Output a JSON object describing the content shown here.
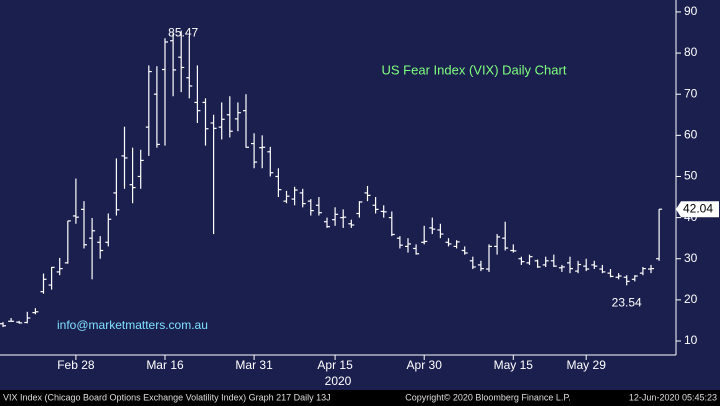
{
  "chart_data": {
    "type": "ohlc",
    "title": "US Fear Index (VIX) Daily Chart",
    "watermark": "info@marketmatters.com.au",
    "x_label": "2020",
    "footer": {
      "left": "VIX Index (Chicago Board Options Exchange Volatility Index) Graph 217  Daily 13J",
      "center": "Copyright© 2020 Bloomberg Finance L.P.",
      "right": "12-Jun-2020 05:45:23"
    },
    "categories": [
      null,
      null,
      null,
      null,
      null,
      null,
      null,
      null,
      null,
      "Feb 28",
      null,
      null,
      null,
      null,
      null,
      null,
      null,
      null,
      null,
      null,
      "Mar 16",
      null,
      null,
      null,
      null,
      null,
      null,
      null,
      null,
      null,
      null,
      "Mar 31",
      null,
      null,
      null,
      null,
      null,
      null,
      null,
      null,
      null,
      "Apr 15",
      null,
      null,
      null,
      null,
      null,
      null,
      null,
      null,
      null,
      null,
      "Apr 30",
      null,
      null,
      null,
      null,
      null,
      null,
      null,
      null,
      null,
      null,
      "May 15",
      null,
      null,
      null,
      null,
      null,
      null,
      null,
      null,
      "May 29",
      null,
      null,
      null,
      null,
      null,
      null,
      null,
      null,
      null
    ],
    "open": [
      14.2,
      14.8,
      14.6,
      14.5,
      16.9,
      22.0,
      23.6,
      26.8,
      29.0,
      40.4,
      42.0,
      35.0,
      34.0,
      34.0,
      46.0,
      55.0,
      48.0,
      50.0,
      62.0,
      70.0,
      76.0,
      83.0,
      79.0,
      74.0,
      68.0,
      68.0,
      63.0,
      62.0,
      65.0,
      64.0,
      66.0,
      58.0,
      57.0,
      56.0,
      50.0,
      44.0,
      44.5,
      46.0,
      44.0,
      43.0,
      39.0,
      39.5,
      40.0,
      38.5,
      41.0,
      46.0,
      43.0,
      41.5,
      40.0,
      35.0,
      33.0,
      32.5,
      34.0,
      37.5,
      37.0,
      34.0,
      33.0,
      32.0,
      29.5,
      28.5,
      27.5,
      33.0,
      35.0,
      32.0,
      30.0,
      29.0,
      29.5,
      28.5,
      29.5,
      27.8,
      29.0,
      27.0,
      28.2,
      28.5,
      27.5,
      26.5,
      25.5,
      25.5,
      25.0,
      26.5,
      27.5,
      30.0
    ],
    "high": [
      14.6,
      15.6,
      14.9,
      17.1,
      18.0,
      26.4,
      28.0,
      30.2,
      39.2,
      49.5,
      44.0,
      39.9,
      35.5,
      41.0,
      54.4,
      62.1,
      57.0,
      56.5,
      77.0,
      76.8,
      83.6,
      84.8,
      85.47,
      84.2,
      77.0,
      69.0,
      65.0,
      68.0,
      69.5,
      68.0,
      70.0,
      60.5,
      60.0,
      57.2,
      52.0,
      46.5,
      47.5,
      47.0,
      44.5,
      45.0,
      40.0,
      42.5,
      42.0,
      39.5,
      44.0,
      47.7,
      45.0,
      43.0,
      41.5,
      35.5,
      35.0,
      33.5,
      38.0,
      40.0,
      38.5,
      35.0,
      34.5,
      33.0,
      30.5,
      29.5,
      33.5,
      36.0,
      39.0,
      33.5,
      30.5,
      31.0,
      29.8,
      30.5,
      31.0,
      28.5,
      30.5,
      29.5,
      30.0,
      29.5,
      28.5,
      27.5,
      26.5,
      26.0,
      26.0,
      28.0,
      28.5,
      42.04
    ],
    "low": [
      13.4,
      14.7,
      14.2,
      14.3,
      16.5,
      21.5,
      22.5,
      26.0,
      28.8,
      38.5,
      32.5,
      25.0,
      30.0,
      33.0,
      40.5,
      47.0,
      43.5,
      47.0,
      55.0,
      57.0,
      57.5,
      69.5,
      70.5,
      69.0,
      63.0,
      57.5,
      36.0,
      59.0,
      59.5,
      61.0,
      57.0,
      52.0,
      52.0,
      50.0,
      45.0,
      43.5,
      43.0,
      42.5,
      40.5,
      40.5,
      37.5,
      38.0,
      37.5,
      37.5,
      40.0,
      44.0,
      41.0,
      40.0,
      35.5,
      32.5,
      31.5,
      31.0,
      33.5,
      36.0,
      35.0,
      33.0,
      32.5,
      31.0,
      27.5,
      27.0,
      26.8,
      31.0,
      32.0,
      31.5,
      28.5,
      28.5,
      27.8,
      28.0,
      28.0,
      26.8,
      26.5,
      26.5,
      27.0,
      27.5,
      26.5,
      25.5,
      25.0,
      23.54,
      24.5,
      26.0,
      26.5,
      29.5
    ],
    "close": [
      13.7,
      14.8,
      14.4,
      15.6,
      17.1,
      25.0,
      27.9,
      27.6,
      39.2,
      40.1,
      33.4,
      36.8,
      32.0,
      39.6,
      41.9,
      54.5,
      47.3,
      53.9,
      75.5,
      57.8,
      82.7,
      75.9,
      76.5,
      72.0,
      66.0,
      61.6,
      61.7,
      63.9,
      61.0,
      65.5,
      57.1,
      53.5,
      57.1,
      50.9,
      46.8,
      45.2,
      46.7,
      43.4,
      41.7,
      41.2,
      37.8,
      40.8,
      40.1,
      38.2,
      43.8,
      45.4,
      42.0,
      41.4,
      35.9,
      33.3,
      33.6,
      31.2,
      34.2,
      37.2,
      36.0,
      33.6,
      34.1,
      31.4,
      28.0,
      27.6,
      33.0,
      35.3,
      32.6,
      31.9,
      29.3,
      30.5,
      28.0,
      29.5,
      28.2,
      28.0,
      27.6,
      28.6,
      27.5,
      28.2,
      26.8,
      25.7,
      25.8,
      24.5,
      25.8,
      27.6,
      27.6,
      42.04
    ],
    "color": "#ffffff",
    "ylim": [
      6.6,
      92.9
    ],
    "yticks": [
      10,
      20,
      30,
      40,
      50,
      60,
      70,
      80,
      90
    ],
    "high_label_index": 22,
    "low_label_index": 77
  }
}
